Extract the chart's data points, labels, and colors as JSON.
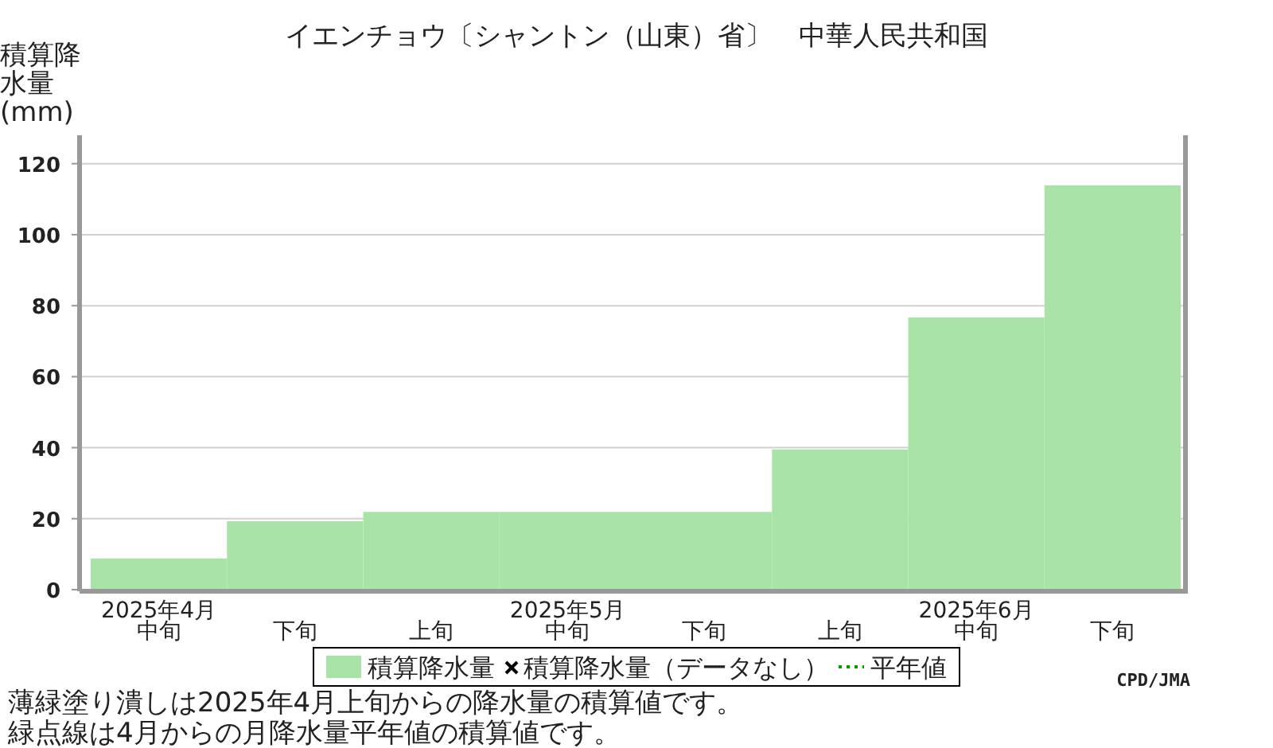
{
  "chart_data": {
    "type": "bar",
    "title": "イエンチョウ〔シャントン（山東）省〕　中華人民共和国",
    "ylabel": "積算降水量(mm)",
    "categories": [
      "2025年4月中旬",
      "下旬",
      "上旬",
      "2025年5月中旬",
      "下旬",
      "上旬",
      "2025年6月中旬",
      "下旬"
    ],
    "series": [
      {
        "name": "積算降水量",
        "color": "#aae3a8",
        "values": [
          8.8,
          19.3,
          21.9,
          21.9,
          21.9,
          39.5,
          76.7,
          113.9
        ]
      },
      {
        "name": "積算降水量（データなし）",
        "type": "scatter",
        "marker": "cross",
        "color": "#000000",
        "values": [
          null,
          null,
          null,
          null,
          null,
          null,
          null,
          null
        ]
      },
      {
        "name": "平年値",
        "type": "line",
        "line_style": "dotted",
        "color": "#00a000",
        "values": [
          null,
          null,
          null,
          null,
          null,
          null,
          null,
          null
        ]
      }
    ],
    "ylim": [
      0,
      128
    ],
    "yticks": [
      0,
      20,
      40,
      60,
      80,
      100,
      120
    ],
    "grid": "y",
    "legend": "bottom",
    "annotations": [
      "CPD/JMA",
      "薄緑塗り潰しは2025年4月上旬からの降水量の積算値です。",
      "緑点線は4月からの月降水量平年値の積算値です。"
    ]
  }
}
